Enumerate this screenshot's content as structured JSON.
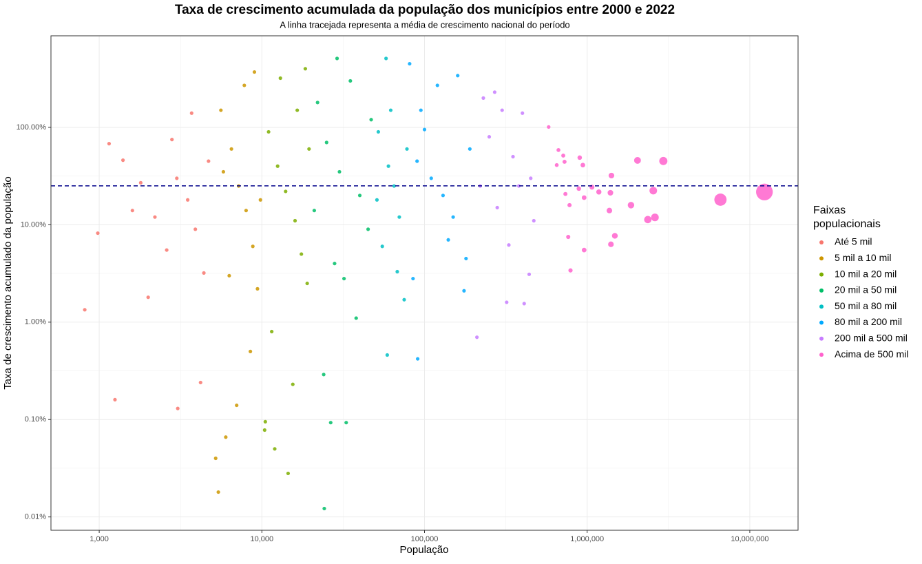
{
  "chart_data": {
    "type": "scatter",
    "title": "Taxa de crescimento acumulada da população dos municípios entre 2000 e 2022",
    "subtitle": "A linha tracejada representa a média de crescimento nacional do período",
    "x_label": "População",
    "y_label": "Taxa de crescimento acumulado da população",
    "x_log": true,
    "y_log": true,
    "grid": true,
    "xlim": [
      505,
      19800000
    ],
    "ylim": [
      0.0073,
      871
    ],
    "xticks": [
      {
        "value": 1000,
        "label": "1,000"
      },
      {
        "value": 10000,
        "label": "10,000"
      },
      {
        "value": 100000,
        "label": "100,000"
      },
      {
        "value": 1000000,
        "label": "1,000,000"
      },
      {
        "value": 10000000,
        "label": "10,000,000"
      }
    ],
    "yticks": [
      {
        "value": 0.01,
        "label": "0.01%"
      },
      {
        "value": 0.1,
        "label": "0.10%"
      },
      {
        "value": 1,
        "label": "1.00%"
      },
      {
        "value": 10,
        "label": "10.00%"
      },
      {
        "value": 100,
        "label": "100.00%"
      }
    ],
    "hline": 25.1,
    "hline_color": "#00008b",
    "legend_title": "Faixas populacionais",
    "legend_position": "right",
    "series": [
      {
        "name": "Até 5 mil",
        "color": "#F8766D",
        "x": [
          815,
          1250,
          3040,
          1150,
          980,
          1400,
          1800,
          2200,
          2600,
          3000,
          3500,
          3900,
          4400,
          4700,
          2800,
          3700,
          2000,
          4200,
          1600
        ],
        "values": [
          1.34,
          0.16,
          0.13,
          68,
          8.2,
          46,
          27,
          12,
          5.5,
          30,
          18,
          9,
          3.2,
          45,
          75,
          140,
          1.8,
          0.24,
          14
        ]
      },
      {
        "name": "5 mil a 10 mil",
        "color": "#CD9600",
        "x": [
          5400,
          5200,
          6000,
          7000,
          5600,
          6500,
          7200,
          8000,
          8800,
          9400,
          6300,
          9000,
          7800,
          8500,
          5800,
          9800
        ],
        "values": [
          0.018,
          0.04,
          0.066,
          0.14,
          150,
          60,
          25,
          14,
          6,
          2.2,
          3,
          370,
          270,
          0.5,
          35,
          18
        ]
      },
      {
        "name": "10 mil a 20 mil",
        "color": "#7CAE00",
        "x": [
          10500,
          10400,
          12000,
          14500,
          13000,
          18500,
          11000,
          12500,
          14000,
          16000,
          17500,
          19000,
          15500,
          11500,
          16500,
          19500
        ],
        "values": [
          0.095,
          0.078,
          0.05,
          0.028,
          320,
          400,
          90,
          40,
          22,
          11,
          5,
          2.5,
          0.23,
          0.8,
          150,
          60
        ]
      },
      {
        "name": "20 mil a 50 mil",
        "color": "#00BE67",
        "x": [
          24200,
          26500,
          33000,
          29000,
          35000,
          22000,
          25000,
          30000,
          40000,
          45000,
          28000,
          38000,
          24000,
          32000,
          47000,
          21000
        ],
        "values": [
          0.0122,
          0.093,
          0.093,
          510,
          300,
          180,
          70,
          35,
          20,
          9,
          4,
          1.1,
          0.29,
          2.8,
          120,
          14
        ]
      },
      {
        "name": "50 mil a 80 mil",
        "color": "#00BFC4",
        "x": [
          59000,
          58000,
          52000,
          60000,
          65000,
          70000,
          55000,
          75000,
          62000,
          78000,
          68000,
          51000
        ],
        "values": [
          0.46,
          510,
          90,
          40,
          25,
          12,
          6,
          1.7,
          150,
          60,
          3.3,
          18
        ]
      },
      {
        "name": "80 mil a 200 mil",
        "color": "#00A9FF",
        "x": [
          90800,
          81000,
          160000,
          120000,
          100000,
          90000,
          110000,
          130000,
          150000,
          140000,
          180000,
          175000,
          85000,
          190000,
          95000
        ],
        "values": [
          0.42,
          450,
          340,
          270,
          95,
          45,
          30,
          20,
          12,
          7,
          4.5,
          2.1,
          2.8,
          60,
          150
        ]
      },
      {
        "name": "200 mil a 500 mil",
        "color": "#C77CFF",
        "x": [
          210000,
          320000,
          410000,
          440000,
          270000,
          230000,
          300000,
          400000,
          250000,
          350000,
          450000,
          220000,
          280000,
          470000,
          330000,
          380000
        ],
        "values": [
          0.7,
          1.6,
          1.55,
          3.1,
          230,
          200,
          150,
          140,
          80,
          50,
          30,
          25,
          15,
          11,
          6.2,
          25
        ]
      },
      {
        "name": "Acima de 500 mil",
        "color": "#FF61CC",
        "x": [
          580000,
          650000,
          713000,
          726000,
          779000,
          765000,
          790000,
          889000,
          958000,
          941000,
          1070000,
          1180000,
          1390000,
          1410000,
          1370000,
          1480000,
          1400000,
          2040000,
          1860000,
          2550000,
          2360000,
          2610000,
          2940000,
          6600000,
          12300000,
          666000,
          735000,
          900000,
          958000
        ],
        "values": [
          101,
          41,
          51.3,
          44.3,
          15.9,
          7.5,
          3.4,
          23.5,
          5.5,
          41,
          24.3,
          21.7,
          21.3,
          32,
          14,
          7.7,
          6.3,
          45.8,
          15.9,
          22.4,
          11.3,
          11.9,
          45.1,
          18.1,
          21.7,
          58.5,
          20.7,
          48.9,
          19.0
        ]
      }
    ]
  }
}
